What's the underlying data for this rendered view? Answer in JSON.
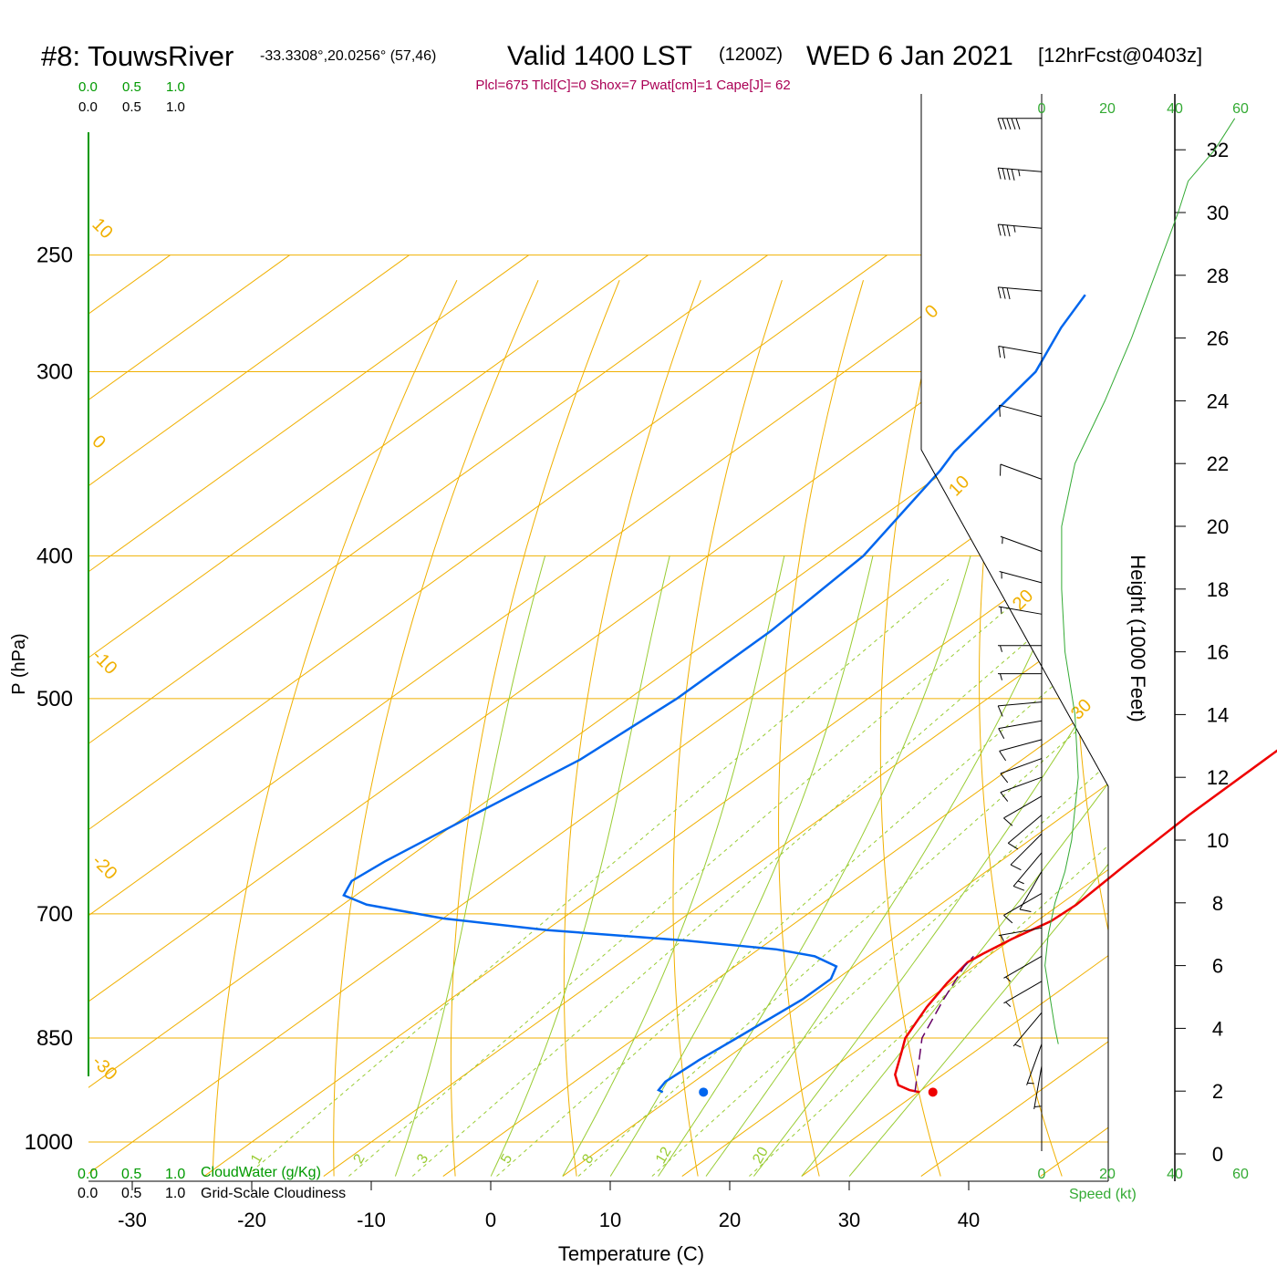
{
  "header": {
    "station": "#8: TouwsRiver",
    "coords": "-33.3308°,20.0256° (57,46)",
    "valid": "Valid 1400 LST",
    "zulu": "(1200Z)",
    "date": "WED 6 Jan 2021",
    "forecast": "[12hrFcst@0403z]"
  },
  "indices": "Plcl=675 Tlcl[C]=0 Shox=7 Pwat[cm]=1 Cape[J]= 62",
  "labels": {
    "cloudwater_top": [
      "0.0",
      "0.5",
      "1.0"
    ],
    "cloudiness_top": [
      "0.0",
      "0.5",
      "1.0"
    ],
    "cloudwater_bottom": [
      "0.0",
      "0.5",
      "1.0"
    ],
    "cloudiness_bottom": [
      "0.0",
      "0.5",
      "1.0"
    ],
    "cloudwater_title": "CloudWater (g/Kg)",
    "cloudiness_title": "Grid-Scale Cloudiness",
    "speed_title": "Speed (kt)",
    "height_title": "Height (1000 Feet)",
    "p_title": "P (hPa)",
    "t_title": "Temperature (C)"
  },
  "colors": {
    "isotherm": "#f0b000",
    "adiabat": "#99cc33",
    "mixing": "#99cc33",
    "temperature": "#ee0000",
    "dewpoint": "#0066ee",
    "parcel": "#660066",
    "speed": "#33aa33",
    "indices": "#aa0055",
    "cloud": "#009900"
  },
  "chart_data": {
    "type": "skew-t",
    "pressure_ticks": [
      250,
      300,
      400,
      500,
      700,
      850,
      1000
    ],
    "temp_ticks": [
      -30,
      -20,
      -10,
      0,
      10,
      20,
      30,
      40
    ],
    "isotherm_labels": [
      {
        "t": 10,
        "text": "10"
      },
      {
        "t": 0,
        "text": "0"
      },
      {
        "t": -10,
        "text": "-10"
      },
      {
        "t": -20,
        "text": "-20"
      },
      {
        "t": -30,
        "text": "-30"
      },
      {
        "t": 0,
        "text": "0",
        "side": "right"
      },
      {
        "t": 10,
        "text": "10",
        "side": "right"
      },
      {
        "t": 20,
        "text": "20",
        "side": "right"
      },
      {
        "t": 30,
        "text": "30",
        "side": "right"
      }
    ],
    "mixing_ratio_labels": [
      "1",
      "2",
      "3",
      "5",
      "8",
      "12",
      "20"
    ],
    "temperature_profile": [
      [
        925,
        30.1
      ],
      [
        922,
        29.0
      ],
      [
        915,
        27.5
      ],
      [
        900,
        26.0
      ],
      [
        870,
        24.0
      ],
      [
        850,
        22.6
      ],
      [
        810,
        20.8
      ],
      [
        780,
        19.7
      ],
      [
        755,
        19.0
      ],
      [
        745,
        19.3
      ],
      [
        728,
        20.0
      ],
      [
        708,
        21.2
      ],
      [
        690,
        21.4
      ],
      [
        650,
        20.9
      ],
      [
        600,
        20.4
      ],
      [
        550,
        20.3
      ],
      [
        500,
        20.2
      ],
      [
        450,
        21.0
      ],
      [
        400,
        22.2
      ],
      [
        360,
        24.8
      ],
      [
        330,
        26.5
      ],
      [
        300,
        29.2
      ],
      [
        280,
        31.2
      ],
      [
        266,
        32.3
      ]
    ],
    "dewpoint_profile": [
      [
        925,
        8.6
      ],
      [
        922,
        8.0
      ],
      [
        910,
        7.6
      ],
      [
        880,
        7.9
      ],
      [
        850,
        8.5
      ],
      [
        800,
        9.5
      ],
      [
        775,
        9.5
      ],
      [
        760,
        8.5
      ],
      [
        748,
        5.5
      ],
      [
        740,
        1.5
      ],
      [
        730,
        -7.0
      ],
      [
        718,
        -20.0
      ],
      [
        705,
        -30.0
      ],
      [
        690,
        -38.0
      ],
      [
        680,
        -41.0
      ],
      [
        665,
        -42.0
      ],
      [
        645,
        -41.5
      ],
      [
        600,
        -39.5
      ],
      [
        550,
        -37.0
      ],
      [
        500,
        -36.0
      ],
      [
        450,
        -36.0
      ],
      [
        400,
        -37.0
      ],
      [
        350,
        -40.5
      ],
      [
        340,
        -41.5
      ],
      [
        300,
        -44.0
      ],
      [
        280,
        -47.0
      ],
      [
        266,
        -48.8
      ]
    ],
    "parcel_profile": [
      [
        925,
        29.7
      ],
      [
        850,
        24.0
      ],
      [
        800,
        21.3
      ],
      [
        760,
        19.2
      ],
      [
        748,
        18.8
      ]
    ],
    "surface_temp": {
      "p": 925,
      "t": 31.2
    },
    "surface_dewpoint": {
      "p": 925,
      "t": 12.0
    },
    "height_ticks_kft": [
      0,
      2,
      4,
      6,
      8,
      10,
      12,
      14,
      16,
      18,
      20,
      22,
      24,
      26,
      28,
      30,
      32
    ],
    "speed_ticks_kt": [
      0,
      20,
      40,
      60
    ],
    "wind_speed_profile_kt": [
      [
        3.5,
        5
      ],
      [
        4,
        4
      ],
      [
        6,
        1
      ],
      [
        7,
        2
      ],
      [
        8,
        4
      ],
      [
        9,
        7
      ],
      [
        10,
        9
      ],
      [
        12,
        11
      ],
      [
        14,
        10
      ],
      [
        16,
        7
      ],
      [
        18,
        6
      ],
      [
        20,
        6
      ],
      [
        22,
        10
      ],
      [
        24,
        19
      ],
      [
        26,
        27
      ],
      [
        28,
        34
      ],
      [
        30,
        41
      ],
      [
        31,
        44
      ],
      [
        32,
        52
      ],
      [
        33,
        58
      ]
    ],
    "wind_barbs": [
      {
        "h": 2.8,
        "dir": 350,
        "spd": 5
      },
      {
        "h": 3.5,
        "dir": 340,
        "spd": 5
      },
      {
        "h": 4.5,
        "dir": 320,
        "spd": 5
      },
      {
        "h": 5.5,
        "dir": 300,
        "spd": 5
      },
      {
        "h": 6.3,
        "dir": 300,
        "spd": 5
      },
      {
        "h": 7.2,
        "dir": 280,
        "spd": 5
      },
      {
        "h": 8.3,
        "dir": 300,
        "spd": 10
      },
      {
        "h": 9.0,
        "dir": 330,
        "spd": 10
      },
      {
        "h": 9.6,
        "dir": 320,
        "spd": 15
      },
      {
        "h": 10.2,
        "dir": 315,
        "spd": 10
      },
      {
        "h": 10.8,
        "dir": 310,
        "spd": 10
      },
      {
        "h": 11.4,
        "dir": 300,
        "spd": 10
      },
      {
        "h": 12.0,
        "dir": 290,
        "spd": 10
      },
      {
        "h": 12.6,
        "dir": 290,
        "spd": 10
      },
      {
        "h": 13.2,
        "dir": 285,
        "spd": 10
      },
      {
        "h": 13.8,
        "dir": 280,
        "spd": 10
      },
      {
        "h": 14.4,
        "dir": 275,
        "spd": 10
      },
      {
        "h": 15.3,
        "dir": 270,
        "spd": 5
      },
      {
        "h": 16.2,
        "dir": 270,
        "spd": 5
      },
      {
        "h": 17.2,
        "dir": 260,
        "spd": 5
      },
      {
        "h": 18.2,
        "dir": 255,
        "spd": 5
      },
      {
        "h": 19.2,
        "dir": 250,
        "spd": 5
      },
      {
        "h": 21.5,
        "dir": 250,
        "spd": 10
      },
      {
        "h": 23.5,
        "dir": 255,
        "spd": 10
      },
      {
        "h": 25.5,
        "dir": 260,
        "spd": 20
      },
      {
        "h": 27.5,
        "dir": 265,
        "spd": 30
      },
      {
        "h": 29.5,
        "dir": 265,
        "spd": 35
      },
      {
        "h": 31.3,
        "dir": 265,
        "spd": 45
      },
      {
        "h": 33.0,
        "dir": 270,
        "spd": 50
      }
    ]
  }
}
